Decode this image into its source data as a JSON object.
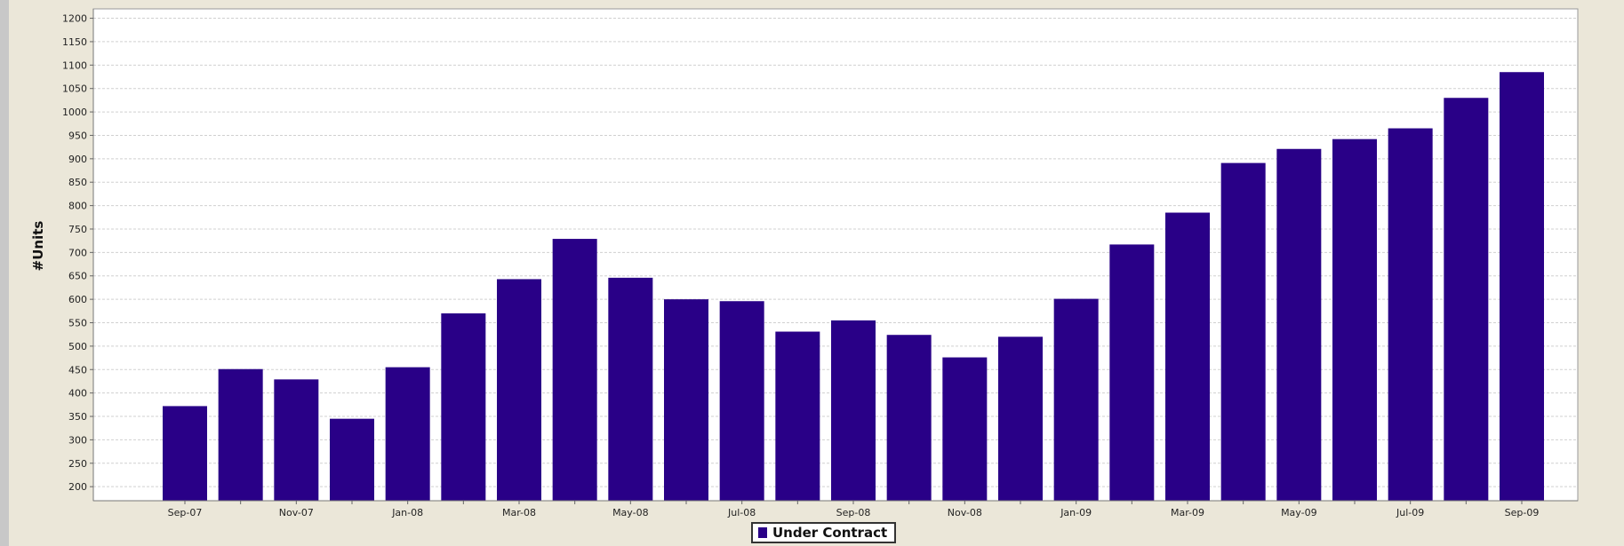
{
  "colors": {
    "bar": "#290087",
    "plot_background": "#ffffff",
    "page_background": "#ebe7d9",
    "grid": "#d0d0d0"
  },
  "chart_data": {
    "type": "bar",
    "title": "",
    "xlabel": "",
    "ylabel": "#Units",
    "ylim": [
      170,
      1220
    ],
    "yticks": [
      200,
      250,
      300,
      350,
      400,
      450,
      500,
      550,
      600,
      650,
      700,
      750,
      800,
      850,
      900,
      950,
      1000,
      1050,
      1100,
      1150,
      1200
    ],
    "grid": true,
    "legend_position": "bottom-center",
    "categories": [
      "Sep-07",
      "Oct-07",
      "Nov-07",
      "Dec-07",
      "Jan-08",
      "Feb-08",
      "Mar-08",
      "Apr-08",
      "May-08",
      "Jun-08",
      "Jul-08",
      "Aug-08",
      "Sep-08",
      "Oct-08",
      "Nov-08",
      "Dec-08",
      "Jan-09",
      "Feb-09",
      "Mar-09",
      "Apr-09",
      "May-09",
      "Jun-09",
      "Jul-09",
      "Aug-09",
      "Sep-09"
    ],
    "visible_tick_labels": [
      "Sep-07",
      "Nov-07",
      "Jan-08",
      "Mar-08",
      "May-08",
      "Jul-08",
      "Sep-08",
      "Nov-08",
      "Jan-09",
      "Mar-09",
      "May-09",
      "Jul-09",
      "Sep-09"
    ],
    "series": [
      {
        "name": "Under Contract",
        "values": [
          372,
          451,
          429,
          345,
          455,
          570,
          643,
          729,
          646,
          600,
          596,
          531,
          555,
          524,
          476,
          520,
          601,
          717,
          785,
          891,
          921,
          942,
          965,
          1030,
          1085
        ]
      }
    ]
  }
}
